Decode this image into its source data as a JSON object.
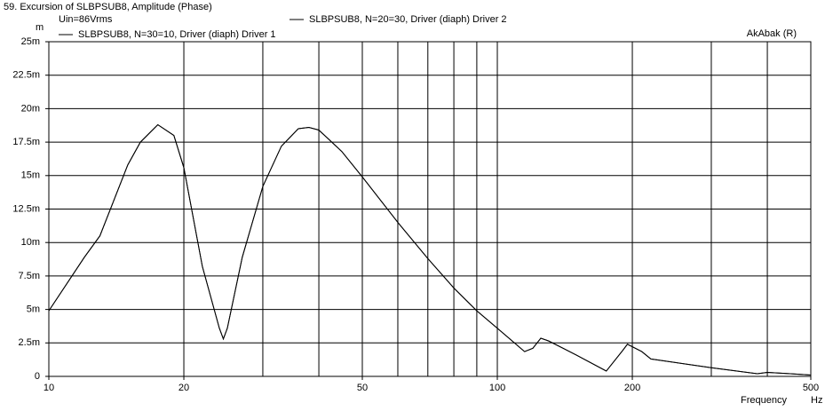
{
  "chart_data": {
    "type": "line",
    "title": "59. Excursion of SLBPSUB8, Amplitude (Phase)",
    "subtitle": "Uin=86Vrms",
    "annotation": "AkAbak (R)",
    "ylabel": "m",
    "xlabel": "Frequency",
    "xunit": "Hz",
    "xlog": true,
    "grid": true,
    "x": [
      10,
      12,
      13,
      15,
      16,
      17.5,
      19,
      20,
      22,
      24,
      24.5,
      25,
      27,
      30,
      33,
      36,
      38,
      40,
      45,
      50,
      60,
      70,
      80,
      90,
      100,
      115,
      120,
      125,
      130,
      150,
      175,
      190,
      195,
      210,
      220,
      300,
      380,
      400,
      450,
      500
    ],
    "series": [
      {
        "name": "SLBPSUB8, N=30=10, Driver (diaph) Driver 1",
        "color": "#000000",
        "values": [
          4.9,
          8.9,
          10.5,
          15.8,
          17.5,
          18.8,
          18.0,
          15.6,
          8.2,
          3.6,
          2.8,
          3.6,
          8.9,
          14.2,
          17.2,
          18.5,
          18.6,
          18.4,
          16.8,
          14.9,
          11.5,
          8.8,
          6.6,
          4.9,
          3.6,
          1.85,
          2.1,
          2.85,
          2.65,
          1.6,
          0.4,
          1.9,
          2.4,
          1.85,
          1.3,
          0.65,
          0.2,
          0.3,
          0.2,
          0.1
        ]
      },
      {
        "name": "SLBPSUB8, N=20=30, Driver (diaph) Driver 2",
        "color": "#000000",
        "values": [
          4.9,
          8.9,
          10.5,
          15.8,
          17.5,
          18.8,
          18.0,
          15.6,
          8.2,
          3.6,
          2.8,
          3.6,
          8.9,
          14.2,
          17.2,
          18.5,
          18.6,
          18.4,
          16.8,
          14.9,
          11.5,
          8.8,
          6.6,
          4.9,
          3.6,
          1.85,
          2.1,
          2.85,
          2.65,
          1.6,
          0.4,
          1.9,
          2.4,
          1.85,
          1.3,
          0.65,
          0.2,
          0.3,
          0.2,
          0.1
        ]
      }
    ],
    "xlim": [
      10,
      500
    ],
    "xticks": [
      10,
      20,
      50,
      100,
      200,
      500
    ],
    "xminor": [
      30,
      40,
      60,
      70,
      80,
      90,
      300,
      400
    ],
    "ylim": [
      0,
      25
    ],
    "yticks": [
      0,
      {
        "value": 2.5,
        "label": "2.5m"
      },
      {
        "value": 5,
        "label": "5m"
      },
      {
        "value": 7.5,
        "label": "7.5m"
      },
      {
        "value": 10,
        "label": "10m"
      },
      {
        "value": 12.5,
        "label": "12.5m"
      },
      {
        "value": 15,
        "label": "15m"
      },
      {
        "value": 17.5,
        "label": "17.5m"
      },
      {
        "value": 20,
        "label": "20m"
      },
      {
        "value": 22.5,
        "label": "22.5m"
      },
      {
        "value": 25,
        "label": "25m"
      }
    ]
  }
}
